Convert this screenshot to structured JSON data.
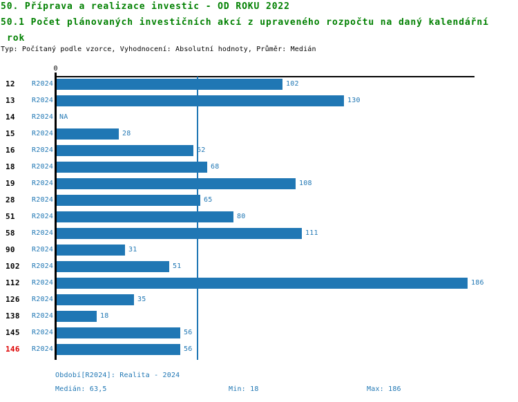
{
  "header": {
    "title_line1": "50. Příprava a realizace investic - OD ROKU 2022",
    "title_line2": "50.1 Počet plánovaných investičních akcí z upraveného rozpočtu na daný kalendářní",
    "title_line3": "rok",
    "subtitle": "Typ: Počítaný podle vzorce, Vyhodnocení: Absolutní hodnoty, Průměr: Medián"
  },
  "colors": {
    "title_green": "#008000",
    "bar_blue": "#2077B4",
    "highlight_red": "#DD0000",
    "axis_black": "#000000"
  },
  "chart_data": {
    "type": "bar",
    "orientation": "horizontal",
    "series_label": "R2024",
    "categories": [
      "12",
      "13",
      "14",
      "15",
      "16",
      "18",
      "19",
      "28",
      "51",
      "58",
      "90",
      "102",
      "112",
      "126",
      "138",
      "145",
      "146"
    ],
    "values": [
      102,
      130,
      null,
      28,
      62,
      68,
      108,
      65,
      80,
      111,
      31,
      51,
      186,
      35,
      18,
      56,
      56
    ],
    "na_label": "NA",
    "highlighted_categories": [
      "146"
    ],
    "axis_zero_label": "0",
    "xlim": [
      0,
      189
    ],
    "median_value": 63.5,
    "median_display": "63,5",
    "min": 18,
    "max": 186,
    "grid": "median-line-only",
    "legend": "none"
  },
  "footer": {
    "period": "Období[R2024]: Realita - 2024",
    "median": "Medián: 63,5",
    "min": "Min: 18",
    "max": "Max: 186"
  }
}
